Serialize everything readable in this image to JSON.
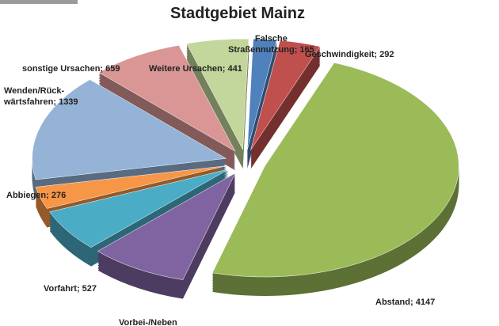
{
  "chart_data": {
    "type": "pie",
    "title": "Stadtgebiet Mainz",
    "values": [
      165,
      292,
      4147,
      700,
      527,
      276,
      1339,
      659,
      441
    ],
    "value_labels": [
      "Falsche\nStraßennutzung; 165",
      "Geschwindigkeit; 292",
      "Abstand; 4147",
      "Vorbei-/Neben",
      "Vorfahrt; 527",
      "Abbiegen; 276",
      "Wenden/Rück-\nwärtsfahren; 1339",
      "sonstige Ursachen; 659",
      "Weitere Ursachen; 441"
    ],
    "colors": [
      "#4f81bd",
      "#c0504d",
      "#9bbb59",
      "#8064a2",
      "#4bacc6",
      "#f79646",
      "#95b3d7",
      "#d99694",
      "#c3d69b"
    ]
  }
}
